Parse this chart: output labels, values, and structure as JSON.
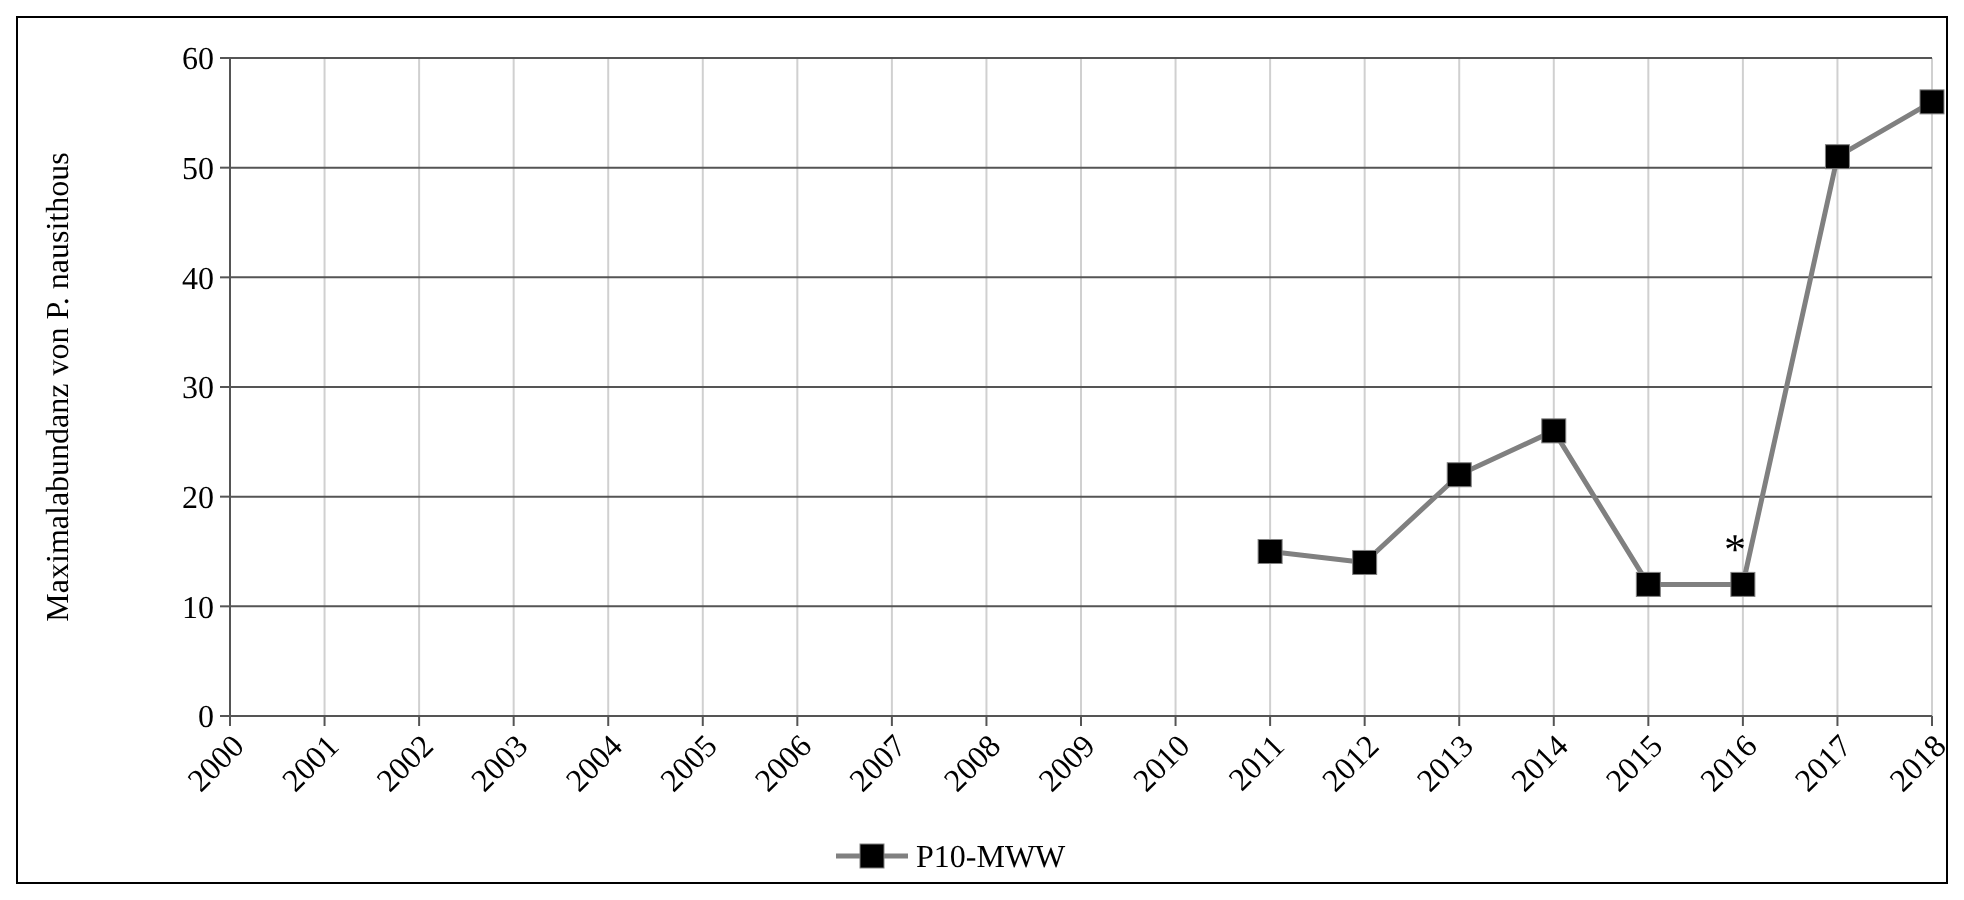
{
  "chart_data": {
    "type": "line",
    "ylabel": "Maximalabundanz von P. nausithous",
    "x": [
      2011,
      2012,
      2013,
      2014,
      2015,
      2016,
      2017,
      2018
    ],
    "series": [
      {
        "name": "P10-MWW",
        "color": "#808080",
        "values": [
          15,
          14,
          22,
          26,
          12,
          12,
          51,
          56
        ]
      }
    ],
    "xlim": [
      2000,
      2018
    ],
    "xticks": [
      2000,
      2001,
      2002,
      2003,
      2004,
      2005,
      2006,
      2007,
      2008,
      2009,
      2010,
      2011,
      2012,
      2013,
      2014,
      2015,
      2016,
      2017,
      2018
    ],
    "ylim": [
      0,
      60
    ],
    "yticks": [
      0,
      10,
      20,
      30,
      40,
      50,
      60
    ],
    "annotations": [
      {
        "text": "*",
        "x": 2016,
        "y": 12
      }
    ],
    "grid": true,
    "legend": "bottom",
    "marker": "square",
    "line_style": "solid"
  }
}
